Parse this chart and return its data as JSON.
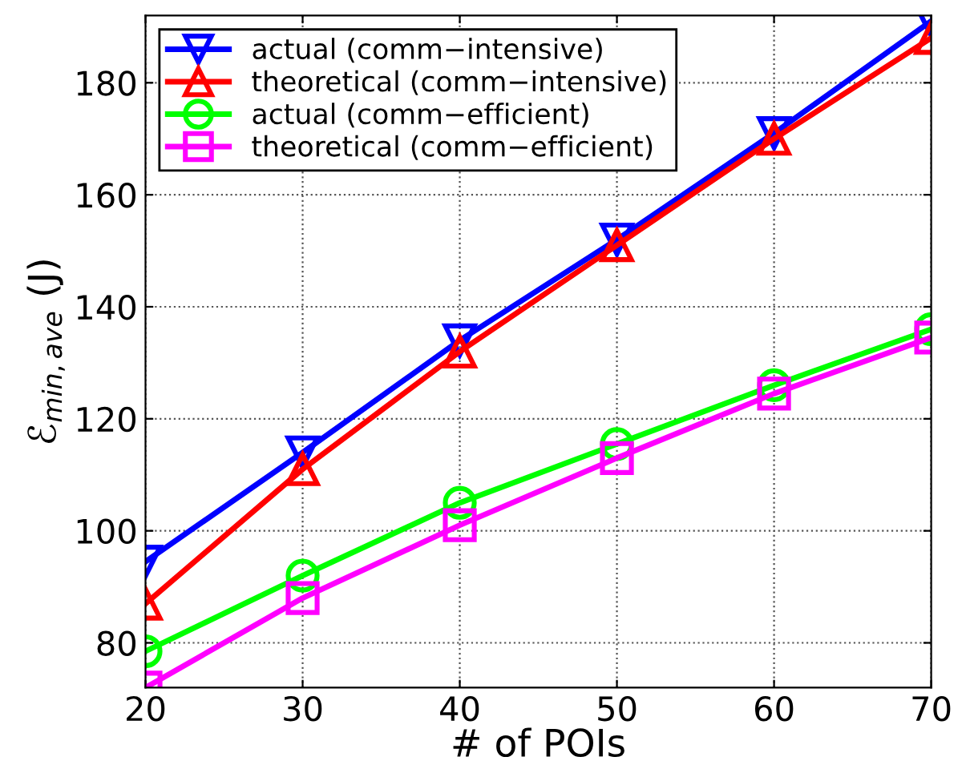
{
  "chart_data": {
    "type": "line",
    "xlabel": "# of POIs",
    "ylabel": "ℰ$_{min,ave}$ (J)",
    "x": [
      20,
      30,
      40,
      50,
      60,
      70
    ],
    "xlim": [
      20,
      70
    ],
    "xticks": [
      20,
      30,
      40,
      50,
      60,
      70
    ],
    "ylim": [
      72,
      192
    ],
    "yticks": [
      80,
      100,
      120,
      140,
      160,
      180
    ],
    "grid": true,
    "legend": "top left",
    "line_style": "solid",
    "series": [
      {
        "name": "actual (comm−intensive)",
        "color": "#0000ff",
        "marker": "triangle_down",
        "values": [
          94.5,
          114,
          134,
          152,
          171,
          191
        ]
      },
      {
        "name": "theoretical (comm−intensive)",
        "color": "#ff0000",
        "marker": "triangle",
        "values": [
          87,
          111,
          132,
          151,
          170,
          188
        ]
      },
      {
        "name": "actual (comm−efficient)",
        "color": "#00ff00",
        "marker": "circle",
        "values": [
          78.5,
          92,
          105,
          115.5,
          126,
          136
        ]
      },
      {
        "name": "theoretical (comm−efficient)",
        "color": "#ff00ff",
        "marker": "square",
        "values": [
          72,
          88,
          101,
          113,
          124.5,
          134.5
        ]
      }
    ]
  }
}
